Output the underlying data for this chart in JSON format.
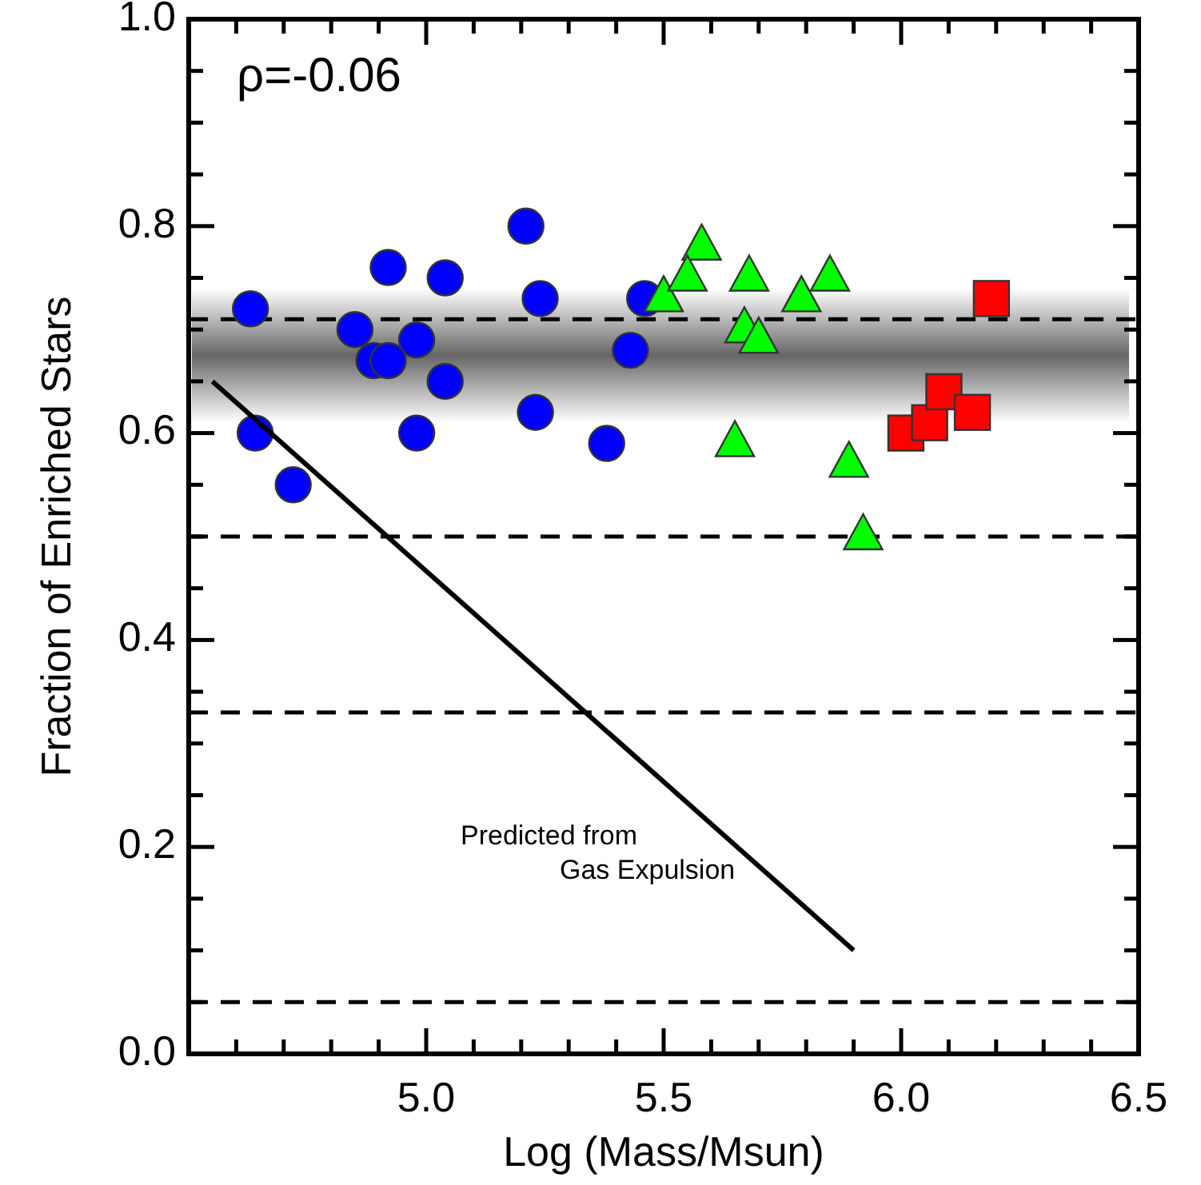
{
  "chart_data": {
    "type": "scatter",
    "xlabel": "Log (Mass/Msun)",
    "ylabel": "Fraction of Enriched Stars",
    "xlim": [
      4.5,
      6.5
    ],
    "ylim": [
      0,
      1
    ],
    "xticks": [
      {
        "value": 4.6,
        "label": null
      },
      {
        "value": 4.7,
        "label": null
      },
      {
        "value": 4.8,
        "label": null
      },
      {
        "value": 4.9,
        "label": null
      },
      {
        "value": 5,
        "label": "5.0"
      },
      {
        "value": 5.1,
        "label": null
      },
      {
        "value": 5.2,
        "label": null
      },
      {
        "value": 5.3,
        "label": null
      },
      {
        "value": 5.4,
        "label": null
      },
      5.5,
      {
        "value": 5.6,
        "label": null
      },
      {
        "value": 5.7,
        "label": null
      },
      {
        "value": 5.8,
        "label": null
      },
      {
        "value": 5.9,
        "label": null
      },
      {
        "value": 6,
        "label": "6.0"
      },
      {
        "value": 6.1,
        "label": null
      },
      {
        "value": 6.2,
        "label": null
      },
      {
        "value": 6.3,
        "label": null
      },
      {
        "value": 6.4,
        "label": null
      },
      6.5
    ],
    "yticks": [
      {
        "value": 0,
        "label": "0.0"
      },
      {
        "value": 0.05,
        "label": null
      },
      {
        "value": 0.1,
        "label": null
      },
      {
        "value": 0.15,
        "label": null
      },
      0.2,
      {
        "value": 0.25,
        "label": null
      },
      {
        "value": 0.3,
        "label": null
      },
      {
        "value": 0.35,
        "label": null
      },
      0.4,
      {
        "value": 0.45,
        "label": null
      },
      {
        "value": 0.5,
        "label": null
      },
      {
        "value": 0.55,
        "label": null
      },
      0.6,
      {
        "value": 0.65,
        "label": null
      },
      {
        "value": 0.7,
        "label": null
      },
      {
        "value": 0.75,
        "label": null
      },
      0.8,
      {
        "value": 0.85,
        "label": null
      },
      {
        "value": 0.9,
        "label": null
      },
      {
        "value": 0.95,
        "label": null
      },
      {
        "value": 1,
        "label": "1.0"
      }
    ],
    "bands": [
      {
        "axis": "y",
        "from": 0.61,
        "to": 0.74,
        "color": "#666666"
      }
    ],
    "ref_lines": [
      {
        "axis": "y",
        "value": 0.71,
        "line_style": "dashed",
        "color": "#000000"
      },
      {
        "axis": "y",
        "value": 0.5,
        "line_style": "dashed",
        "color": "#000000"
      },
      {
        "axis": "y",
        "value": 0.33,
        "line_style": "dashed",
        "color": "#000000"
      },
      {
        "axis": "y",
        "value": 0.05,
        "line_style": "dashed",
        "color": "#000000"
      }
    ],
    "series": [
      {
        "marker": "circle",
        "color": "#0000ff",
        "x": [
          4.63,
          4.64,
          4.72,
          4.85,
          4.92,
          4.89,
          4.92,
          4.98,
          4.98,
          5.04,
          5.04,
          5.21,
          5.24,
          5.23,
          5.38,
          5.43,
          5.46
        ],
        "values": [
          0.72,
          0.6,
          0.55,
          0.7,
          0.76,
          0.67,
          0.67,
          0.69,
          0.6,
          0.75,
          0.65,
          0.8,
          0.73,
          0.62,
          0.59,
          0.68,
          0.73
        ]
      },
      {
        "marker": "triangle",
        "color": "#00ff00",
        "x": [
          5.5,
          5.58,
          5.55,
          5.68,
          5.67,
          5.7,
          5.79,
          5.85,
          5.65,
          5.89,
          5.92
        ],
        "values": [
          0.73,
          0.78,
          0.75,
          0.75,
          0.7,
          0.69,
          0.73,
          0.75,
          0.59,
          0.57,
          0.5
        ]
      },
      {
        "marker": "square",
        "color": "#ff0000",
        "x": [
          6.19,
          6.01,
          6.06,
          6.09,
          6.15
        ],
        "values": [
          0.73,
          0.6,
          0.61,
          0.64,
          0.62
        ]
      },
      {
        "type": "line",
        "color": "#000000",
        "line_style": "solid",
        "x": [
          4.55,
          5.9
        ],
        "values": [
          0.65,
          0.1
        ]
      }
    ],
    "annotations": [
      "ρ=-0.06",
      "Predicted from\nGas Expulsion"
    ]
  }
}
